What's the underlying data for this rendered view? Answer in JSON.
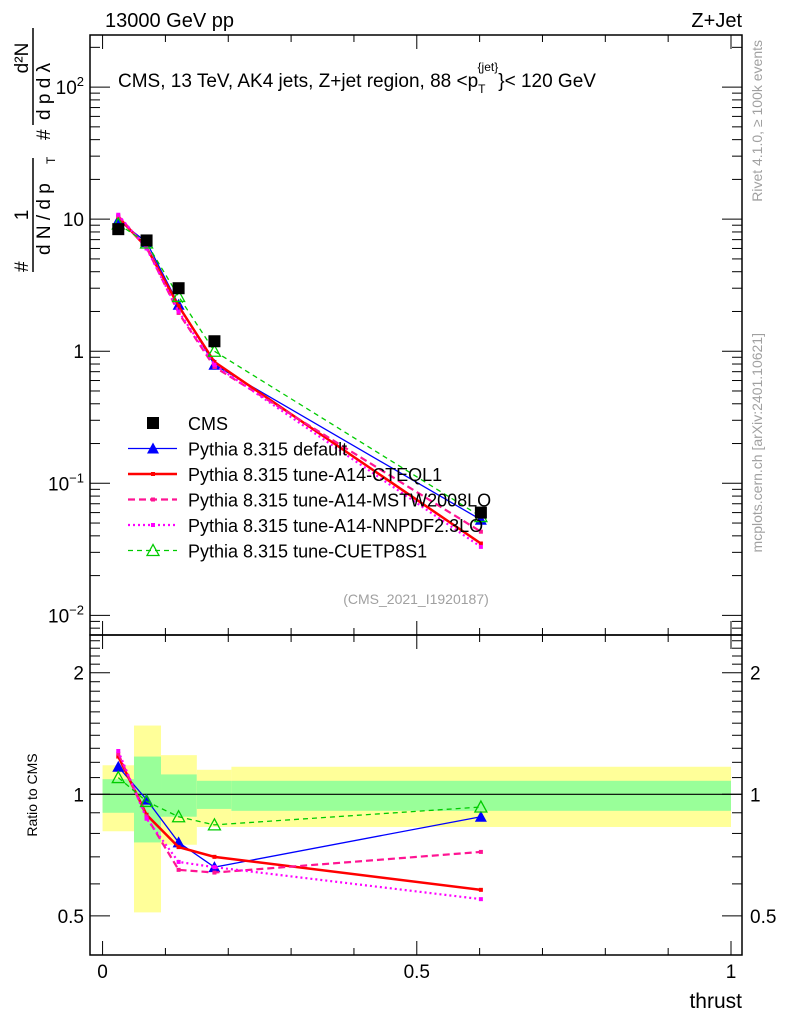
{
  "header": {
    "left": "13000 GeV pp",
    "right": "Z+Jet"
  },
  "side_labels": {
    "rivet": "Rivet 4.1.0, ≥ 100k events",
    "mcplots": "mcplots.cern.ch [arXiv:2401.10621]"
  },
  "chart_data": [
    {
      "type": "line",
      "title": "CMS, 13 TeV, AK4 jets, Z+jet region, 88 <p_T^{jet}< 120 GeV",
      "title_parts": {
        "main": "CMS, 13 TeV, AK4 jets, Z+jet region, 88 <p",
        "sub": "T",
        "sup": "{jet}",
        "tail": "}< 120 GeV"
      },
      "ylabel": {
        "num1": "1",
        "den1": "d N / d p",
        "num2": "d²N",
        "den2": "d p   d λ",
        "hash": "#",
        "sub": "T"
      },
      "xlim": [
        -0.02,
        1.0175
      ],
      "ylim": [
        0.0071,
        248
      ],
      "yscale": "log",
      "yticks": [
        {
          "v": 0.01,
          "label": "10",
          "exp": "−2"
        },
        {
          "v": 0.1,
          "label": "10",
          "exp": "−1"
        },
        {
          "v": 1,
          "label": "1",
          "exp": ""
        },
        {
          "v": 10,
          "label": "10",
          "exp": ""
        },
        {
          "v": 100,
          "label": "10",
          "exp": "2"
        }
      ],
      "watermark": "(CMS_2021_I1920187)",
      "x": [
        0.025,
        0.07,
        0.121,
        0.178,
        0.602
      ],
      "series": [
        {
          "name": "CMS",
          "color": "#000000",
          "style": "data",
          "values": [
            8.4,
            6.9,
            3.0,
            1.19,
            0.06
          ]
        },
        {
          "name": "Pythia 8.315 default",
          "color": "#0000ff",
          "style": "solid-tri",
          "values": [
            9.8,
            6.7,
            2.25,
            0.79,
            0.053
          ]
        },
        {
          "name": "Pythia 8.315 tune-A14-CTEQL1",
          "color": "#ff0000",
          "style": "solid-thick",
          "values": [
            10.4,
            6.1,
            2.2,
            0.83,
            0.035
          ]
        },
        {
          "name": "Pythia 8.315 tune-A14-MSTW2008LO",
          "color": "#ff1493",
          "style": "dashed",
          "values": [
            10.6,
            6.1,
            1.95,
            0.76,
            0.043
          ]
        },
        {
          "name": "Pythia 8.315 tune-A14-NNPDF2.3LO",
          "color": "#ff00ff",
          "style": "dotted",
          "values": [
            10.8,
            6.0,
            2.0,
            0.79,
            0.033
          ]
        },
        {
          "name": "Pythia 8.315 tune-CUETP8S1",
          "color": "#00cc00",
          "style": "dashed-opentri",
          "values": [
            9.2,
            6.6,
            2.6,
            1.0,
            0.056
          ]
        }
      ]
    },
    {
      "type": "line",
      "ylabel": "Ratio to CMS",
      "xlabel": "thrust",
      "xlim": [
        -0.02,
        1.0175
      ],
      "ylim": [
        0.4,
        2.48
      ],
      "yscale": "log",
      "yticks": [
        {
          "v": 0.5,
          "label": "0.5"
        },
        {
          "v": 1,
          "label": "1"
        },
        {
          "v": 2,
          "label": "2"
        }
      ],
      "xticks": [
        {
          "v": 0,
          "label": "0"
        },
        {
          "v": 0.5,
          "label": "0.5"
        },
        {
          "v": 1,
          "label": "1"
        }
      ],
      "bins": [
        0.0,
        0.05,
        0.093,
        0.15,
        0.205,
        1.0
      ],
      "band_yellow": [
        [
          0.81,
          1.18
        ],
        [
          0.51,
          1.48
        ],
        [
          0.75,
          1.25
        ],
        [
          0.83,
          1.15
        ],
        [
          0.83,
          1.17
        ]
      ],
      "band_green": [
        [
          0.9,
          1.09
        ],
        [
          0.76,
          1.24
        ],
        [
          0.88,
          1.12
        ],
        [
          0.92,
          1.08
        ],
        [
          0.91,
          1.08
        ]
      ],
      "x": [
        0.025,
        0.07,
        0.121,
        0.178,
        0.602
      ],
      "series": [
        {
          "name": "Pythia 8.315 default",
          "color": "#0000ff",
          "style": "solid-tri",
          "values": [
            1.17,
            0.97,
            0.76,
            0.66,
            0.88
          ]
        },
        {
          "name": "Pythia 8.315 tune-A14-CTEQL1",
          "color": "#ff0000",
          "style": "solid-thick",
          "values": [
            1.24,
            0.89,
            0.74,
            0.7,
            0.58
          ]
        },
        {
          "name": "Pythia 8.315 tune-A14-MSTW2008LO",
          "color": "#ff1493",
          "style": "dashed",
          "values": [
            1.26,
            0.88,
            0.65,
            0.64,
            0.72
          ]
        },
        {
          "name": "Pythia 8.315 tune-A14-NNPDF2.3LO",
          "color": "#ff00ff",
          "style": "dotted",
          "values": [
            1.28,
            0.87,
            0.68,
            0.66,
            0.55
          ]
        },
        {
          "name": "Pythia 8.315 tune-CUETP8S1",
          "color": "#00cc00",
          "style": "dashed-opentri",
          "values": [
            1.1,
            0.96,
            0.88,
            0.84,
            0.93
          ]
        }
      ]
    }
  ]
}
